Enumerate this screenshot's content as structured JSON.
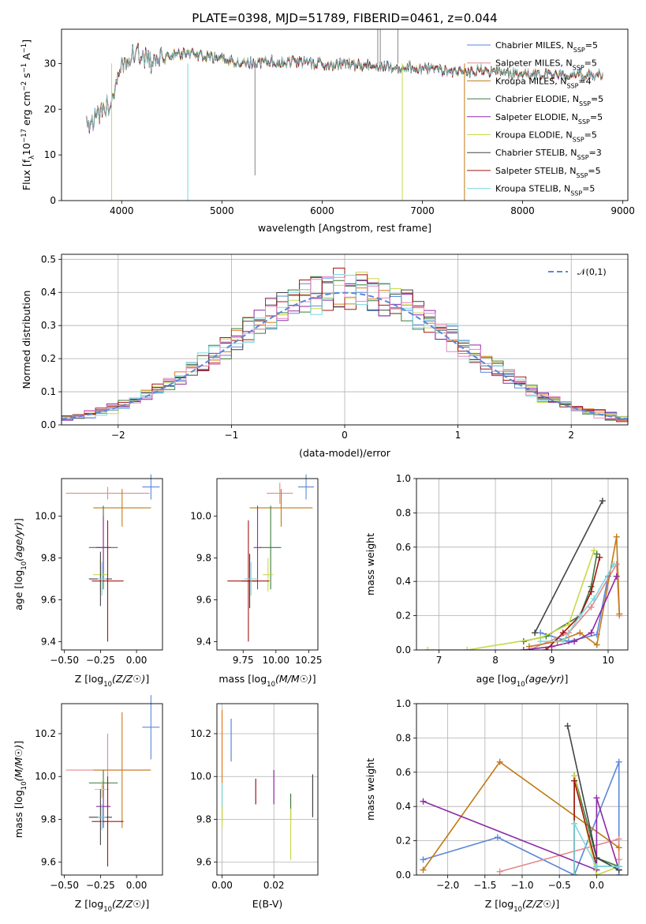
{
  "colors": {
    "Chabrier MILES": "#5b87d9",
    "Salpeter MILES": "#e48a8a",
    "Kroupa MILES": "#c07a18",
    "Chabrier ELODIE": "#3d7a3d",
    "Salpeter ELODIE": "#8e2aa6",
    "Kroupa ELODIE": "#c9d84a",
    "Chabrier STELIB": "#444444",
    "Salpeter STELIB": "#a51414",
    "Kroupa STELIB": "#7ad8df",
    "orange": "#e07b20",
    "pink": "#e088c4",
    "normal": "#5b87d9"
  },
  "chart_data": [
    {
      "type": "line",
      "title": "PLATE=0398, MJD=51789, FIBERID=0461, z=0.044",
      "xlabel": "wavelength [Angstrom, rest frame]",
      "ylabel": "Flux [f_λ10^-17 erg cm^-2 s^-1 A^-1]",
      "xlim": [
        3400,
        9050
      ],
      "ylim": [
        0,
        37.5
      ],
      "xticks": [
        "4000",
        "5000",
        "6000",
        "7000",
        "8000",
        "9000"
      ],
      "yticks": [
        "0",
        "10",
        "20",
        "30"
      ],
      "legend_position": "top-right",
      "legend": [
        {
          "name": "Chabrier MILES",
          "nssp": "5"
        },
        {
          "name": "Salpeter MILES",
          "nssp": "5"
        },
        {
          "name": "Kroupa MILES",
          "nssp": "4"
        },
        {
          "name": "Chabrier ELODIE",
          "nssp": "5"
        },
        {
          "name": "Salpeter ELODIE",
          "nssp": "5"
        },
        {
          "name": "Kroupa ELODIE",
          "nssp": "5"
        },
        {
          "name": "Chabrier STELIB",
          "nssp": "3"
        },
        {
          "name": "Salpeter STELIB",
          "nssp": "5"
        },
        {
          "name": "Kroupa STELIB",
          "nssp": "5"
        }
      ],
      "continuum": {
        "x": [
          3650,
          3700,
          3800,
          3900,
          3950,
          4000,
          4050,
          4100,
          4200,
          4300,
          4400,
          4500,
          4700,
          5000,
          5300,
          5500,
          6000,
          6500,
          7000,
          7400,
          7600,
          7800,
          8000,
          8400,
          8800
        ],
        "y": [
          17,
          17.5,
          19,
          22,
          25,
          29,
          31,
          32,
          32,
          30,
          31,
          32,
          32,
          31,
          30,
          30.5,
          30,
          29.5,
          29,
          28,
          28.5,
          28,
          27.5,
          27.5,
          27.5
        ]
      },
      "dips": [
        [
          3900,
          0
        ],
        [
          4660,
          0
        ],
        [
          6800,
          0
        ],
        [
          7420,
          0
        ]
      ],
      "spikes": [
        [
          5330,
          5.5
        ],
        [
          6555,
          37.5
        ],
        [
          6580,
          37.5
        ],
        [
          6755,
          37.5
        ]
      ]
    },
    {
      "type": "histogram",
      "xlabel": "(data-model)/error",
      "ylabel": "Normed distribution",
      "xlim": [
        -2.5,
        2.5
      ],
      "ylim": [
        0,
        0.515
      ],
      "xticks": [
        "−2",
        "−1",
        "0",
        "1",
        "2"
      ],
      "yticks": [
        "0.0",
        "0.1",
        "0.2",
        "0.3",
        "0.4",
        "0.5"
      ],
      "grid": true,
      "legend_position": "top-right",
      "legend": [
        "𝒩(0,1)"
      ],
      "bin_width": 0.1,
      "normal": {
        "mean": 0,
        "sigma": 1
      }
    },
    {
      "type": "error-scatter",
      "xlabel": "Z [log10(Z/Z⊙)]",
      "ylabel": "age  [log10(age/yr)]",
      "xlim": [
        -0.52,
        0.18
      ],
      "ylim": [
        9.36,
        10.18
      ],
      "xticks": [
        "−0.50",
        "−0.25",
        "0.00"
      ],
      "yticks": [
        "9.4",
        "9.6",
        "9.8",
        "10.0"
      ],
      "points": [
        {
          "x": 0.1,
          "y": 10.14,
          "xerr": 0.06,
          "yerr": 0.06
        },
        {
          "x": -0.2,
          "y": 10.11,
          "xerr": 0.29,
          "yerr": 0.03
        },
        {
          "x": -0.1,
          "y": 10.04,
          "xerr": 0.2,
          "yerr": 0.09
        },
        {
          "x": -0.23,
          "y": 9.85,
          "xerr": 0.1,
          "yerr": 0.2
        },
        {
          "x": -0.23,
          "y": 9.85,
          "xerr": 0.05,
          "yerr": 0.15
        },
        {
          "x": -0.25,
          "y": 9.72,
          "xerr": 0.05,
          "yerr": 0.08
        },
        {
          "x": -0.25,
          "y": 9.7,
          "xerr": 0.08,
          "yerr": 0.13
        },
        {
          "x": -0.2,
          "y": 9.69,
          "xerr": 0.11,
          "yerr": 0.29
        },
        {
          "x": -0.24,
          "y": 9.7,
          "xerr": 0.03,
          "yerr": 0.08
        }
      ]
    },
    {
      "type": "error-scatter",
      "xlabel": "mass [log10(M/M⊙)]",
      "xlim": [
        9.55,
        10.32
      ],
      "ylim": [
        9.36,
        10.18
      ],
      "xticks": [
        "9.75",
        "10.00",
        "10.25"
      ],
      "yticks": [
        "9.4",
        "9.6",
        "9.8",
        "10.0"
      ],
      "points": [
        {
          "x": 10.23,
          "y": 10.14,
          "xerr": 0.06,
          "yerr": 0.06
        },
        {
          "x": 10.03,
          "y": 10.11,
          "xerr": 0.1,
          "yerr": 0.05
        },
        {
          "x": 10.04,
          "y": 10.04,
          "xerr": 0.24,
          "yerr": 0.09
        },
        {
          "x": 9.96,
          "y": 9.85,
          "xerr": 0.08,
          "yerr": 0.2
        },
        {
          "x": 9.86,
          "y": 9.85,
          "xerr": 0.03,
          "yerr": 0.2
        },
        {
          "x": 9.94,
          "y": 9.72,
          "xerr": 0.04,
          "yerr": 0.08
        },
        {
          "x": 9.8,
          "y": 9.69,
          "xerr": 0.06,
          "yerr": 0.13
        },
        {
          "x": 9.79,
          "y": 9.69,
          "xerr": 0.16,
          "yerr": 0.29
        },
        {
          "x": 9.81,
          "y": 9.7,
          "xerr": 0.05,
          "yerr": 0.08
        }
      ]
    },
    {
      "type": "line",
      "xlabel": "age  [log10(age/yr)]",
      "ylabel": "mass weight",
      "xlim": [
        6.6,
        10.35
      ],
      "ylim": [
        0,
        1.0
      ],
      "xticks": [
        "7",
        "8",
        "9",
        "10"
      ],
      "yticks": [
        "0.0",
        "0.2",
        "0.4",
        "0.6",
        "0.8",
        "1.0"
      ],
      "grid": true,
      "series": [
        {
          "x": [
            8.8,
            9.3,
            9.8,
            10.0
          ],
          "y": [
            0.1,
            0.05,
            0.09,
            0.43
          ]
        },
        {
          "x": [
            8.6,
            9.3,
            9.7,
            10.15,
            10.2
          ],
          "y": [
            0.0,
            0.1,
            0.25,
            0.5,
            0.2
          ]
        },
        {
          "x": [
            8.6,
            9.1,
            9.5,
            9.8,
            10.15,
            10.2
          ],
          "y": [
            0.02,
            0.05,
            0.1,
            0.03,
            0.66,
            0.21
          ]
        },
        {
          "x": [
            8.5,
            8.9,
            9.5,
            9.7,
            9.8
          ],
          "y": [
            0.05,
            0.08,
            0.2,
            0.37,
            0.56
          ]
        },
        {
          "x": [
            8.5,
            9.0,
            9.4,
            9.7,
            10.15
          ],
          "y": [
            0.0,
            0.02,
            0.05,
            0.1,
            0.43
          ]
        },
        {
          "x": [
            6.8,
            7.5,
            8.8,
            9.3,
            9.75
          ],
          "y": [
            0.0,
            0.0,
            0.07,
            0.15,
            0.58
          ]
        },
        {
          "x": [
            8.7,
            9.9
          ],
          "y": [
            0.1,
            0.87
          ]
        },
        {
          "x": [
            8.9,
            9.2,
            9.5,
            9.7,
            9.85
          ],
          "y": [
            0.0,
            0.1,
            0.2,
            0.34,
            0.54
          ]
        },
        {
          "x": [
            8.8,
            9.2,
            9.5,
            9.75,
            10.1
          ],
          "y": [
            0.05,
            0.05,
            0.2,
            0.3,
            0.5
          ]
        }
      ]
    },
    {
      "type": "error-scatter",
      "xlabel": "Z [log10(Z/Z⊙)]",
      "ylabel": "mass [log10(M/M⊙)]",
      "xlim": [
        -0.52,
        0.18
      ],
      "ylim": [
        9.54,
        10.34
      ],
      "xticks": [
        "−0.50",
        "−0.25",
        "0.00"
      ],
      "yticks": [
        "9.6",
        "9.8",
        "10.0",
        "10.2"
      ],
      "points": [
        {
          "x": 0.1,
          "y": 10.23,
          "xerr": 0.06,
          "yerr": 0.15
        },
        {
          "x": -0.2,
          "y": 10.03,
          "xerr": 0.29,
          "yerr": 0.17
        },
        {
          "x": -0.1,
          "y": 10.03,
          "xerr": 0.2,
          "yerr": 0.27
        },
        {
          "x": -0.23,
          "y": 9.97,
          "xerr": 0.1,
          "yerr": 0.06
        },
        {
          "x": -0.23,
          "y": 9.86,
          "xerr": 0.05,
          "yerr": 0.1
        },
        {
          "x": -0.24,
          "y": 9.94,
          "xerr": 0.05,
          "yerr": 0.04
        },
        {
          "x": -0.25,
          "y": 9.81,
          "xerr": 0.08,
          "yerr": 0.13
        },
        {
          "x": -0.2,
          "y": 9.79,
          "xerr": 0.11,
          "yerr": 0.21
        },
        {
          "x": -0.24,
          "y": 9.81,
          "xerr": 0.03,
          "yerr": 0.06
        }
      ]
    },
    {
      "type": "error-bars",
      "xlabel": "E(B-V)",
      "xlim": [
        -0.002,
        0.037
      ],
      "ylim": [
        9.54,
        10.34
      ],
      "xticks": [
        "0.00",
        "0.02"
      ],
      "yticks": [
        "9.6",
        "9.8",
        "10.0",
        "10.2"
      ],
      "points": [
        {
          "x": 0.0035,
          "y": 10.17,
          "yerr": 0.1
        },
        {
          "x": 0.0,
          "y": 10.05,
          "yerr": 0.26
        },
        {
          "x": 0.0,
          "y": 9.89,
          "yerr": 0.08
        },
        {
          "x": 0.013,
          "y": 9.93,
          "yerr": 0.06
        },
        {
          "x": 0.02,
          "y": 9.95,
          "yerr": 0.08
        },
        {
          "x": 0.035,
          "y": 9.91,
          "yerr": 0.1
        },
        {
          "x": 0.0265,
          "y": 9.86,
          "yerr": 0.06
        },
        {
          "x": 0.0265,
          "y": 9.73,
          "yerr": 0.12
        },
        {
          "x": 0.0,
          "y": 9.81,
          "yerr": 0.05
        }
      ]
    },
    {
      "type": "line",
      "xlabel": "Z [log10(Z/Z⊙)]",
      "ylabel": "mass weight",
      "xlim": [
        -2.42,
        0.42
      ],
      "ylim": [
        0,
        1.0
      ],
      "xticks": [
        "−2.0",
        "−1.5",
        "−1.0",
        "−0.5",
        "0.0"
      ],
      "yticks": [
        "0.0",
        "0.2",
        "0.4",
        "0.6",
        "0.8",
        "1.0"
      ],
      "grid": true,
      "series": [
        {
          "x": [
            -2.33,
            -1.33,
            -0.3,
            0.3,
            0.3
          ],
          "y": [
            0.09,
            0.22,
            0.0,
            0.66,
            0.0
          ]
        },
        {
          "x": [
            -1.3,
            0.3,
            0.3
          ],
          "y": [
            0.02,
            0.21,
            0.09
          ]
        },
        {
          "x": [
            -2.33,
            -1.3,
            0.3
          ],
          "y": [
            0.03,
            0.66,
            0.16
          ]
        },
        {
          "x": [
            -0.3,
            -0.3,
            0.0,
            0.3
          ],
          "y": [
            0.0,
            0.58,
            0.1,
            0.05
          ]
        },
        {
          "x": [
            -2.33,
            0.0,
            0.0,
            0.3
          ],
          "y": [
            0.43,
            0.03,
            0.45,
            0.03
          ]
        },
        {
          "x": [
            -0.3,
            -0.3,
            0.0,
            0.3
          ],
          "y": [
            0.3,
            0.58,
            0.0,
            0.05
          ]
        },
        {
          "x": [
            -0.39,
            0.0,
            0.3
          ],
          "y": [
            0.87,
            0.1,
            0.03
          ]
        },
        {
          "x": [
            -0.3,
            -0.3,
            0.0,
            0.3
          ],
          "y": [
            0.0,
            0.55,
            0.05,
            0.05
          ]
        },
        {
          "x": [
            -0.3,
            -0.3,
            0.0,
            0.3
          ],
          "y": [
            0.0,
            0.3,
            0.05,
            0.05
          ]
        }
      ]
    }
  ]
}
